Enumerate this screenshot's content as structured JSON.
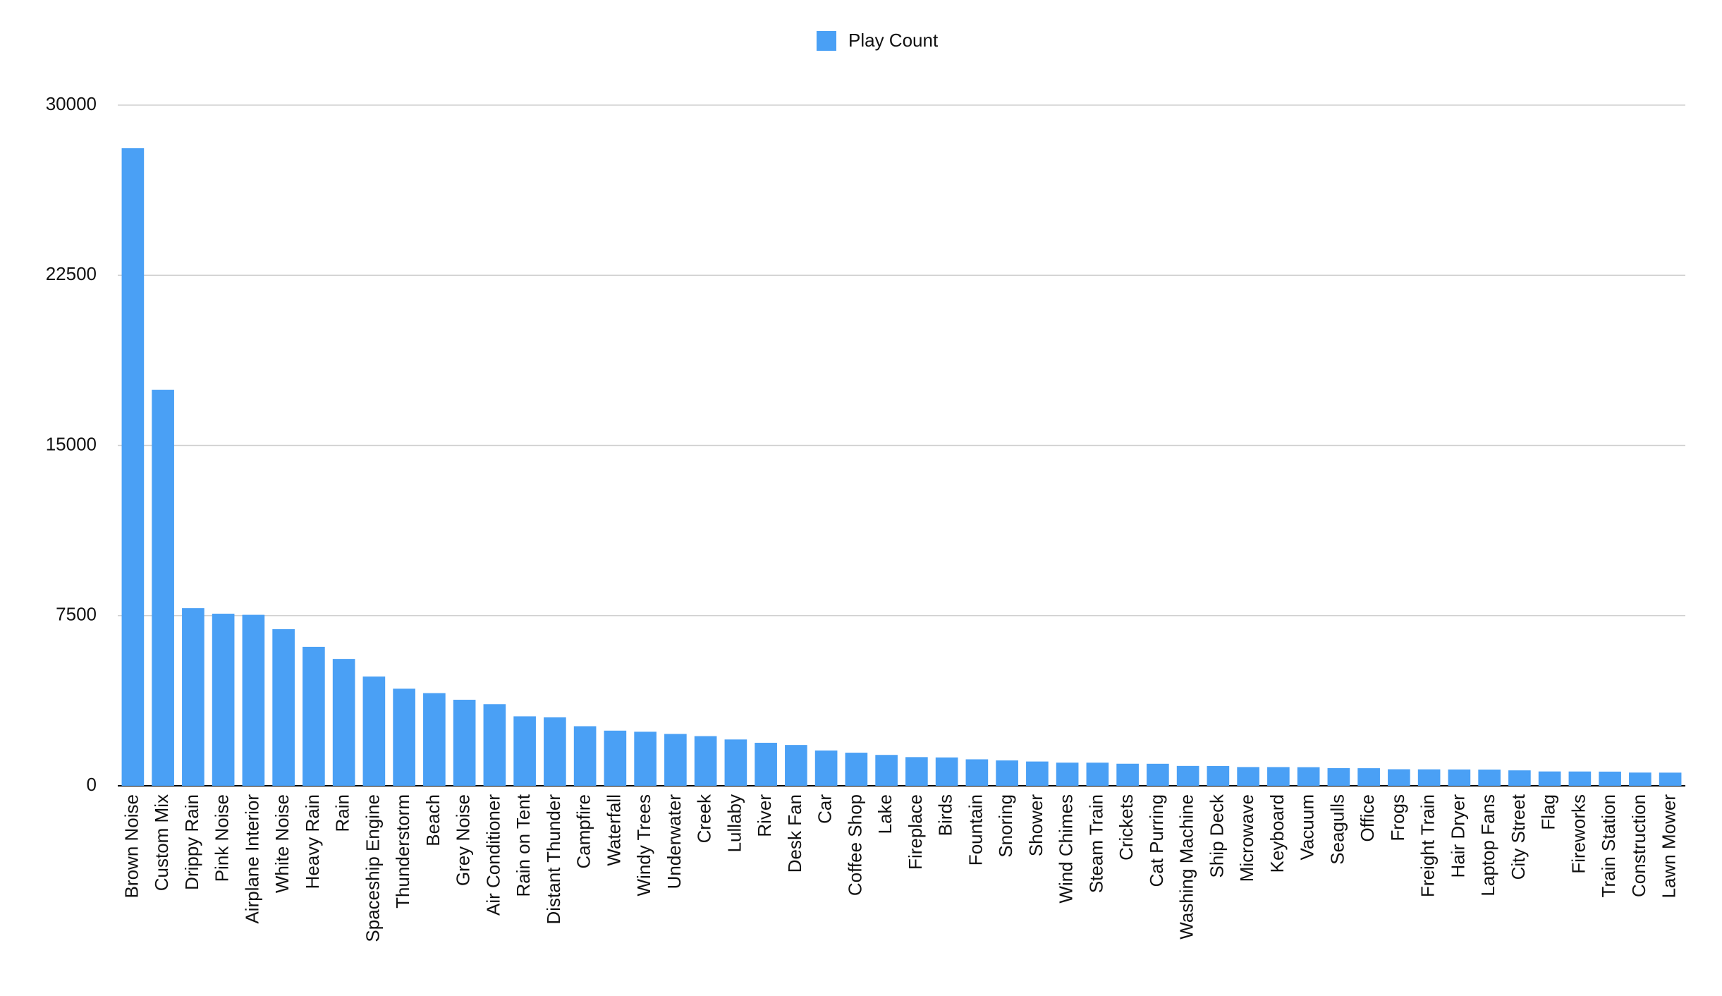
{
  "chart_data": {
    "type": "bar",
    "categories": [
      "Brown Noise",
      "Custom Mix",
      "Drippy Rain",
      "Pink Noise",
      "Airplane Interior",
      "White Noise",
      "Heavy Rain",
      "Rain",
      "Spaceship Engine",
      "Thunderstorm",
      "Beach",
      "Grey Noise",
      "Air Conditioner",
      "Rain on Tent",
      "Distant Thunder",
      "Campfire",
      "Waterfall",
      "Windy Trees",
      "Underwater",
      "Creek",
      "Lullaby",
      "River",
      "Desk Fan",
      "Car",
      "Coffee Shop",
      "Lake",
      "Fireplace",
      "Birds",
      "Fountain",
      "Snoring",
      "Shower",
      "Wind Chimes",
      "Steam Train",
      "Crickets",
      "Cat Purring",
      "Washing Machine",
      "Ship Deck",
      "Microwave",
      "Keyboard",
      "Vacuum",
      "Seagulls",
      "Office",
      "Frogs",
      "Freight Train",
      "Hair Dryer",
      "Laptop Fans",
      "City Street",
      "Flag",
      "Fireworks",
      "Train Station",
      "Construction",
      "Lawn Mower"
    ],
    "series": [
      {
        "name": "Play Count",
        "color": "#4aa0f5",
        "values": [
          28100,
          17450,
          7830,
          7585,
          7536,
          6904,
          6126,
          5592,
          4814,
          4279,
          4084,
          3792,
          3598,
          3063,
          3015,
          2626,
          2431,
          2382,
          2285,
          2188,
          2042,
          1896,
          1799,
          1556,
          1459,
          1361,
          1264,
          1250,
          1167,
          1118,
          1070,
          1021,
          1020,
          972,
          970,
          875,
          870,
          826,
          825,
          820,
          778,
          775,
          729,
          725,
          720,
          715,
          680,
          632,
          630,
          625,
          583,
          580
        ]
      }
    ],
    "ylim": [
      0,
      30000
    ],
    "yticks": [
      0,
      7500,
      15000,
      22500,
      30000
    ],
    "grid": true,
    "legend": "top"
  }
}
